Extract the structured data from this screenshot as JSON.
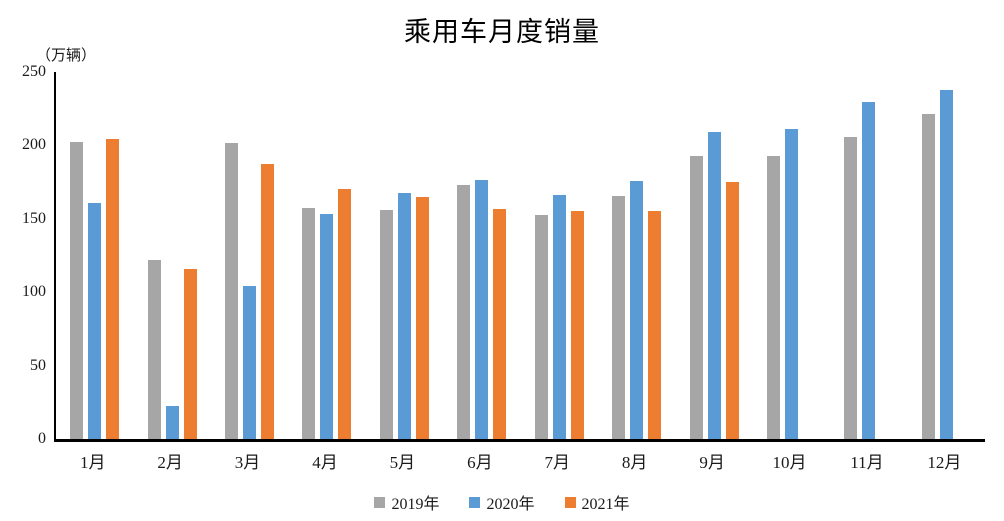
{
  "title": "乘用车月度销量",
  "unit_label": "（万辆）",
  "chart_data": {
    "type": "bar",
    "title": "乘用车月度销量",
    "ylabel": "（万辆）",
    "xlabel": "",
    "categories": [
      "1月",
      "2月",
      "3月",
      "4月",
      "5月",
      "6月",
      "7月",
      "8月",
      "9月",
      "10月",
      "11月",
      "12月"
    ],
    "series": [
      {
        "name": "2019年",
        "color": "#A6A6A6",
        "values": [
          202.2,
          121.9,
          201.9,
          157.5,
          156.1,
          172.8,
          152.8,
          165.3,
          193.1,
          192.8,
          205.7,
          221.3
        ]
      },
      {
        "name": "2020年",
        "color": "#5B9BD5",
        "values": [
          161.0,
          22.4,
          104.3,
          153.6,
          167.4,
          176.4,
          166.5,
          175.5,
          208.8,
          211.0,
          229.7,
          237.5
        ]
      },
      {
        "name": "2021年",
        "color": "#ED7D31",
        "values": [
          204.5,
          115.6,
          187.4,
          170.4,
          164.6,
          156.9,
          155.1,
          155.2,
          175.1,
          null,
          null,
          null
        ]
      }
    ],
    "ylim": [
      0,
      250
    ],
    "yticks": [
      0,
      50,
      100,
      150,
      200,
      250
    ],
    "grid": false,
    "legend_position": "bottom"
  }
}
